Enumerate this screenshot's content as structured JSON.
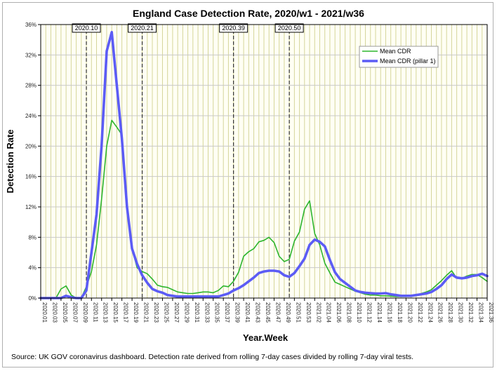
{
  "chart_data": {
    "type": "line",
    "title": "England Case Detection Rate, 2020/w1 - 2021/w36",
    "xlabel": "Year.Week",
    "ylabel": "Detection Rate",
    "ylim": [
      0,
      36
    ],
    "yticks": [
      "0%",
      "4%",
      "8%",
      "12%",
      "16%",
      "20%",
      "24%",
      "28%",
      "32%",
      "36%"
    ],
    "x_tick_labels": [
      "2020.01",
      "2020.03",
      "2020.05",
      "2020.07",
      "2020.09",
      "2020.11",
      "2020.13",
      "2020.15",
      "2020.17",
      "2020.19",
      "2020.21",
      "2020.23",
      "2020.25",
      "2020.27",
      "2020.29",
      "2020.31",
      "2020.33",
      "2020.35",
      "2020.37",
      "2020.39",
      "2020.41",
      "2020.43",
      "2020.45",
      "2020.47",
      "2020.49",
      "2020.51",
      "2020.53",
      "2021.02",
      "2021.04",
      "2021.06",
      "2021.08",
      "2021.10",
      "2021.12",
      "2021.14",
      "2021.16",
      "2021.18",
      "2021.20",
      "2021.22",
      "2021.24",
      "2021.26",
      "2021.28",
      "2021.30",
      "2021.32",
      "2021.34",
      "2021.36"
    ],
    "x_count": 89,
    "grid": true,
    "legend_position": "top-right",
    "markers": [
      {
        "label": "2020.10",
        "index": 9
      },
      {
        "label": "2020.21",
        "index": 20
      },
      {
        "label": "2020.39",
        "index": 38
      },
      {
        "label": "2020.50",
        "index": 49
      }
    ],
    "series": [
      {
        "name": "Mean CDR",
        "color": "#2db52d",
        "values": [
          0,
          0,
          0,
          0,
          1.2,
          1.6,
          0.4,
          0,
          0,
          1.5,
          3.5,
          7,
          13,
          20,
          23.4,
          22.5,
          21.5,
          12,
          6.5,
          4,
          3.5,
          3.2,
          2.5,
          1.7,
          1.5,
          1.4,
          1.1,
          0.8,
          0.7,
          0.6,
          0.6,
          0.7,
          0.8,
          0.8,
          0.7,
          1,
          1.6,
          1.5,
          2.2,
          3.4,
          5.5,
          6.1,
          6.5,
          7.4,
          7.6,
          8,
          7.3,
          5.5,
          4.8,
          5.1,
          7.5,
          8.7,
          11.7,
          12.8,
          8.5,
          7,
          4.6,
          3.3,
          2.1,
          1.8,
          1.5,
          1.2,
          0.9,
          0.7,
          0.5,
          0.4,
          0.4,
          0.3,
          0.3,
          0.25,
          0.2,
          0.2,
          0.2,
          0.3,
          0.4,
          0.6,
          0.8,
          1.1,
          1.7,
          2.3,
          3,
          3.6,
          2.6,
          2.6,
          2.9,
          3.1,
          3.1,
          2.7,
          2.2
        ]
      },
      {
        "name": "Mean CDR (pillar 1)",
        "color": "#5c5cf5",
        "values": [
          0,
          0,
          0,
          0,
          0,
          0.3,
          0.1,
          0,
          0,
          1,
          6,
          11,
          20,
          32.5,
          35,
          28,
          21,
          12,
          6.5,
          4.5,
          3,
          2,
          1.2,
          0.9,
          0.7,
          0.4,
          0.3,
          0.2,
          0.2,
          0.2,
          0.2,
          0.2,
          0.2,
          0.2,
          0.2,
          0.2,
          0.4,
          0.6,
          1,
          1.3,
          1.7,
          2.2,
          2.7,
          3.3,
          3.5,
          3.6,
          3.6,
          3.5,
          3,
          2.8,
          3.3,
          4.2,
          5.2,
          7,
          7.7,
          7.4,
          6.8,
          5,
          3.4,
          2.5,
          2,
          1.5,
          1,
          0.8,
          0.7,
          0.65,
          0.6,
          0.6,
          0.65,
          0.5,
          0.4,
          0.3,
          0.3,
          0.3,
          0.4,
          0.5,
          0.6,
          0.8,
          1.2,
          1.7,
          2.5,
          3.1,
          2.7,
          2.6,
          2.7,
          2.9,
          3,
          3.2,
          2.9
        ]
      }
    ]
  },
  "source_note": "Source: UK GOV coronavirus dashboard. Detection rate derived from rolling 7-day cases divided by rolling 7-day viral tests."
}
